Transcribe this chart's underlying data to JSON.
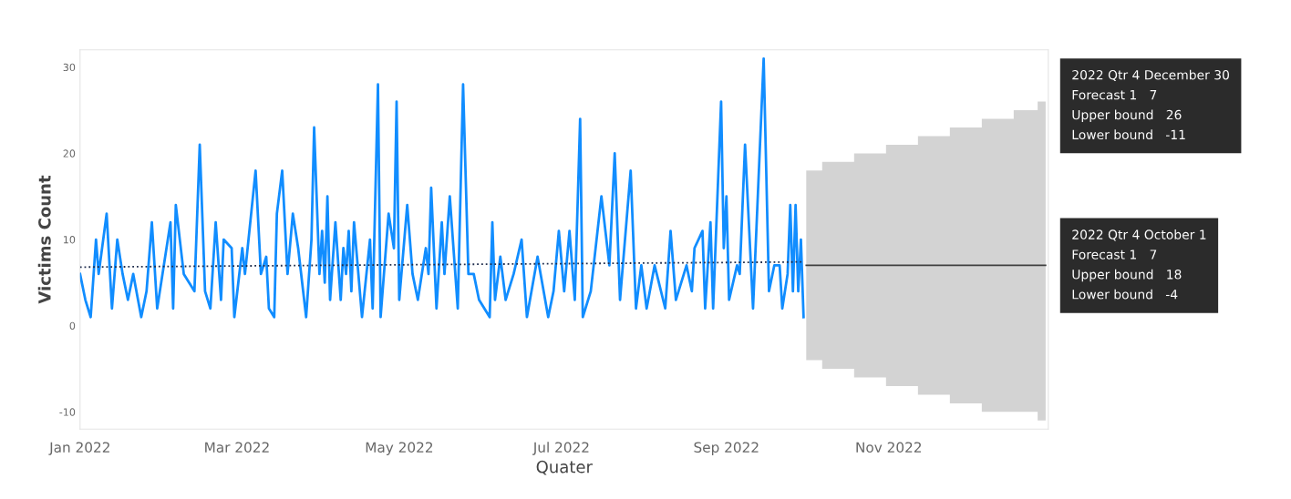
{
  "chart_data": {
    "type": "line",
    "xlabel": "Quater",
    "ylabel": "Victims Count",
    "xlim": [
      "2022-01-01",
      "2022-12-31"
    ],
    "ylim": [
      -12,
      32
    ],
    "xticks": [
      {
        "value": "2022-01-01",
        "label": "Jan 2022"
      },
      {
        "value": "2022-03-01",
        "label": "Mar 2022"
      },
      {
        "value": "2022-05-01",
        "label": "May 2022"
      },
      {
        "value": "2022-07-01",
        "label": "Jul 2022"
      },
      {
        "value": "2022-09-01",
        "label": "Sep 2022"
      },
      {
        "value": "2022-11-01",
        "label": "Nov 2022"
      }
    ],
    "yticks": [
      -10,
      0,
      10,
      20,
      30
    ],
    "grid": false,
    "legend": false,
    "series": [
      {
        "color": "#118dff",
        "x": [
          "2022-01-01",
          "2022-01-03",
          "2022-01-05",
          "2022-01-07",
          "2022-01-08",
          "2022-01-11",
          "2022-01-13",
          "2022-01-15",
          "2022-01-17",
          "2022-01-19",
          "2022-01-21",
          "2022-01-24",
          "2022-01-26",
          "2022-01-28",
          "2022-01-30",
          "2022-02-04",
          "2022-02-05",
          "2022-02-06",
          "2022-02-09",
          "2022-02-13",
          "2022-02-15",
          "2022-02-17",
          "2022-02-19",
          "2022-02-21",
          "2022-02-23",
          "2022-02-24",
          "2022-02-27",
          "2022-02-28",
          "2022-03-03",
          "2022-03-04",
          "2022-03-08",
          "2022-03-10",
          "2022-03-12",
          "2022-03-13",
          "2022-03-15",
          "2022-03-16",
          "2022-03-18",
          "2022-03-20",
          "2022-03-22",
          "2022-03-24",
          "2022-03-27",
          "2022-03-29",
          "2022-03-30",
          "2022-04-01",
          "2022-04-02",
          "2022-04-03",
          "2022-04-04",
          "2022-04-05",
          "2022-04-07",
          "2022-04-09",
          "2022-04-10",
          "2022-04-11",
          "2022-04-12",
          "2022-04-13",
          "2022-04-14",
          "2022-04-17",
          "2022-04-20",
          "2022-04-21",
          "2022-04-23",
          "2022-04-24",
          "2022-04-27",
          "2022-04-29",
          "2022-04-30",
          "2022-05-01",
          "2022-05-04",
          "2022-05-06",
          "2022-05-08",
          "2022-05-11",
          "2022-05-12",
          "2022-05-13",
          "2022-05-15",
          "2022-05-17",
          "2022-05-18",
          "2022-05-20",
          "2022-05-23",
          "2022-05-25",
          "2022-05-27",
          "2022-05-29",
          "2022-05-31",
          "2022-06-04",
          "2022-06-05",
          "2022-06-06",
          "2022-06-08",
          "2022-06-10",
          "2022-06-13",
          "2022-06-16",
          "2022-06-18",
          "2022-06-22",
          "2022-06-26",
          "2022-06-28",
          "2022-06-30",
          "2022-07-02",
          "2022-07-04",
          "2022-07-06",
          "2022-07-08",
          "2022-07-09",
          "2022-07-12",
          "2022-07-16",
          "2022-07-19",
          "2022-07-21",
          "2022-07-23",
          "2022-07-27",
          "2022-07-29",
          "2022-07-31",
          "2022-08-02",
          "2022-08-05",
          "2022-08-09",
          "2022-08-11",
          "2022-08-13",
          "2022-08-17",
          "2022-08-19",
          "2022-08-20",
          "2022-08-23",
          "2022-08-24",
          "2022-08-26",
          "2022-08-27",
          "2022-08-30",
          "2022-08-31",
          "2022-09-01",
          "2022-09-02",
          "2022-09-05",
          "2022-09-06",
          "2022-09-08",
          "2022-09-11",
          "2022-09-15",
          "2022-09-17",
          "2022-09-19",
          "2022-09-21",
          "2022-09-22",
          "2022-09-24",
          "2022-09-25",
          "2022-09-26",
          "2022-09-27",
          "2022-09-28",
          "2022-09-29",
          "2022-09-30"
        ],
        "values": [
          6,
          3,
          1,
          10,
          6,
          13,
          2,
          10,
          6,
          3,
          6,
          1,
          4,
          12,
          2,
          12,
          2,
          14,
          6,
          4,
          21,
          4,
          2,
          12,
          3,
          10,
          9,
          1,
          9,
          6,
          18,
          6,
          8,
          2,
          1,
          13,
          18,
          6,
          13,
          9,
          1,
          10,
          23,
          6,
          11,
          5,
          15,
          3,
          12,
          3,
          9,
          6,
          11,
          4,
          12,
          1,
          10,
          2,
          28,
          1,
          13,
          9,
          26,
          3,
          14,
          6,
          3,
          9,
          6,
          16,
          2,
          12,
          6,
          15,
          2,
          28,
          6,
          6,
          3,
          1,
          12,
          3,
          8,
          3,
          6,
          10,
          1,
          8,
          1,
          4,
          11,
          4,
          11,
          3,
          24,
          1,
          4,
          15,
          7,
          20,
          3,
          18,
          2,
          7,
          2,
          7,
          2,
          11,
          3,
          7,
          4,
          9,
          11,
          2,
          12,
          2,
          26,
          9,
          15,
          3,
          7,
          6,
          21,
          2,
          31,
          4,
          7,
          7,
          2,
          6,
          14,
          4,
          14,
          4,
          10,
          1
        ]
      },
      {
        "color": "#1f2d4d",
        "line_style": "dotted",
        "x": [
          "2022-01-01",
          "2022-09-30"
        ],
        "values": [
          6.8,
          7.4
        ]
      },
      {
        "type": "step",
        "color": "#404040",
        "x": [
          "2022-10-01",
          "2022-10-13",
          "2022-10-25",
          "2022-11-06",
          "2022-11-18",
          "2022-11-30",
          "2022-12-12",
          "2022-12-24",
          "2022-12-30"
        ],
        "values": [
          7,
          7,
          7,
          7,
          7,
          7,
          7,
          7,
          7
        ],
        "upper": [
          18,
          19,
          20,
          21,
          22,
          23,
          24,
          25,
          26
        ],
        "lower": [
          -4,
          -5,
          -6,
          -7,
          -8,
          -9,
          -10,
          -10,
          -11
        ]
      }
    ],
    "annotations": [
      "2022 Qtr 4 December 30\nForecast 1   7\nUpper bound   26\nLower bound   -11",
      "2022 Qtr 4 October 1\nForecast 1   7\nUpper bound   18\nLower bound   -4"
    ]
  }
}
